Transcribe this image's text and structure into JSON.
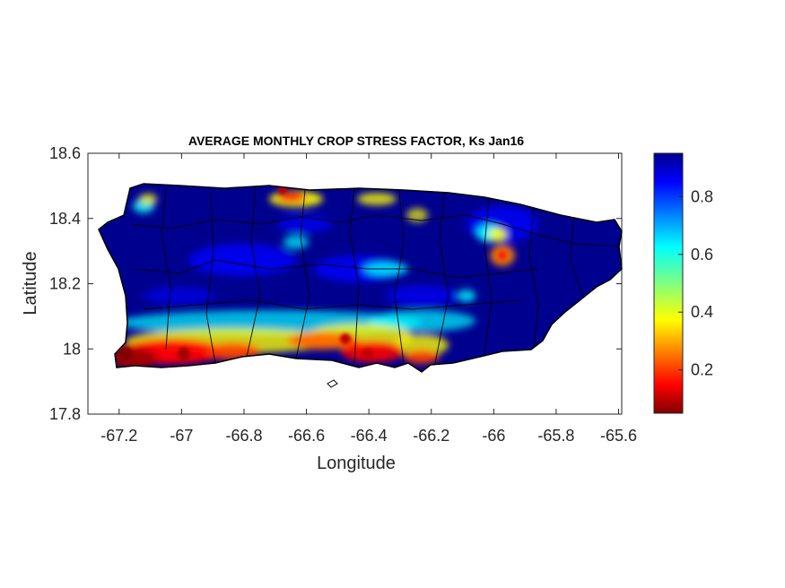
{
  "chart_data": {
    "type": "heatmap",
    "title": "AVERAGE MONTHLY CROP STRESS FACTOR, Ks Jan16",
    "xlabel": "Longitude",
    "ylabel": "Latitude",
    "xlim": [
      -67.3,
      -65.59
    ],
    "ylim": [
      17.8,
      18.6
    ],
    "xticks": [
      "-67.2",
      "-67",
      "-66.8",
      "-66.6",
      "-66.4",
      "-66.2",
      "-66",
      "-65.8",
      "-65.6"
    ],
    "xtick_values": [
      -67.2,
      -67.0,
      -66.8,
      -66.6,
      -66.4,
      -66.2,
      -66.0,
      -65.8,
      -65.6
    ],
    "yticks": [
      "18.6",
      "18.4",
      "18.2",
      "18",
      "17.8"
    ],
    "ytick_values": [
      18.6,
      18.4,
      18.2,
      18.0,
      17.8
    ],
    "colorbar": {
      "colormap": "jet",
      "range": [
        0.05,
        0.95
      ],
      "ticks": [
        "0.8",
        "0.6",
        "0.4",
        "0.2"
      ],
      "tick_values": [
        0.8,
        0.6,
        0.4,
        0.2
      ]
    },
    "grid": false
  },
  "colors": {
    "jet": [
      "#800000",
      "#ff0000",
      "#ffff00",
      "#00ffff",
      "#0000ff",
      "#00008f"
    ],
    "land_base": "#00008f",
    "border": "#000000"
  }
}
